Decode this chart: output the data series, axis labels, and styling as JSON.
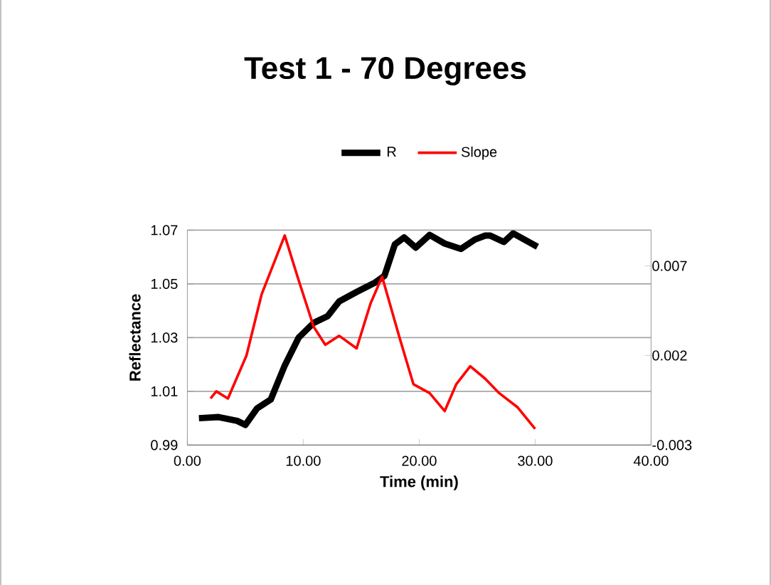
{
  "chart_data": {
    "type": "line",
    "title": "Test 1 - 70 Degrees",
    "xlabel": "Time (min)",
    "ylabel": "Reflectance",
    "xlim": [
      0,
      40
    ],
    "xticks": [
      {
        "value": 0,
        "label": "0.00"
      },
      {
        "value": 10,
        "label": "10.00"
      },
      {
        "value": 20,
        "label": "20.00"
      },
      {
        "value": 30,
        "label": "30.00"
      },
      {
        "value": 40,
        "label": "40.00"
      }
    ],
    "ylim": [
      0.99,
      1.07
    ],
    "yticks": [
      0.99,
      1.01,
      1.03,
      1.05,
      1.07
    ],
    "y2lim": [
      -0.003,
      0.009
    ],
    "y2ticks": [
      -0.003,
      0.002,
      0.007
    ],
    "grid": "y",
    "legend": "top",
    "line_style": "solid",
    "marker": "none",
    "series": [
      {
        "name": "R",
        "color": "#000000",
        "x": [
          1.0,
          2.7,
          4.3,
          5.0,
          6.0,
          7.2,
          8.4,
          9.6,
          10.9,
          12.1,
          13.1,
          14.6,
          16.2,
          17.0,
          17.9,
          18.7,
          19.7,
          20.9,
          22.2,
          23.6,
          24.8,
          25.7,
          26.1,
          27.3,
          28.1,
          30.2
        ],
        "values": [
          1.0,
          1.0004,
          0.999,
          0.9975,
          1.0036,
          1.007,
          1.0196,
          1.03,
          1.0355,
          1.038,
          1.0435,
          1.047,
          1.0505,
          1.053,
          1.0647,
          1.0673,
          1.0635,
          1.0682,
          1.065,
          1.063,
          1.0665,
          1.068,
          1.068,
          1.0656,
          1.0688,
          1.0638
        ]
      },
      {
        "name": "Slope",
        "color": "#ff0000",
        "axis": "y2",
        "x": [
          2.0,
          2.5,
          3.5,
          5.1,
          6.4,
          8.4,
          9.6,
          10.9,
          11.9,
          13.1,
          14.6,
          15.8,
          16.8,
          18.3,
          19.5,
          20.9,
          22.2,
          23.2,
          24.4,
          25.7,
          26.9,
          28.5,
          30.0
        ],
        "values": [
          -0.0004,
          0.0,
          -0.0004,
          0.002,
          0.0054,
          0.0087,
          0.0062,
          0.0036,
          0.0026,
          0.0031,
          0.0024,
          0.0049,
          0.0064,
          0.003,
          0.0004,
          -0.0001,
          -0.0011,
          0.0004,
          0.0014,
          0.0007,
          -0.0001,
          -0.0009,
          -0.0021
        ]
      }
    ]
  }
}
